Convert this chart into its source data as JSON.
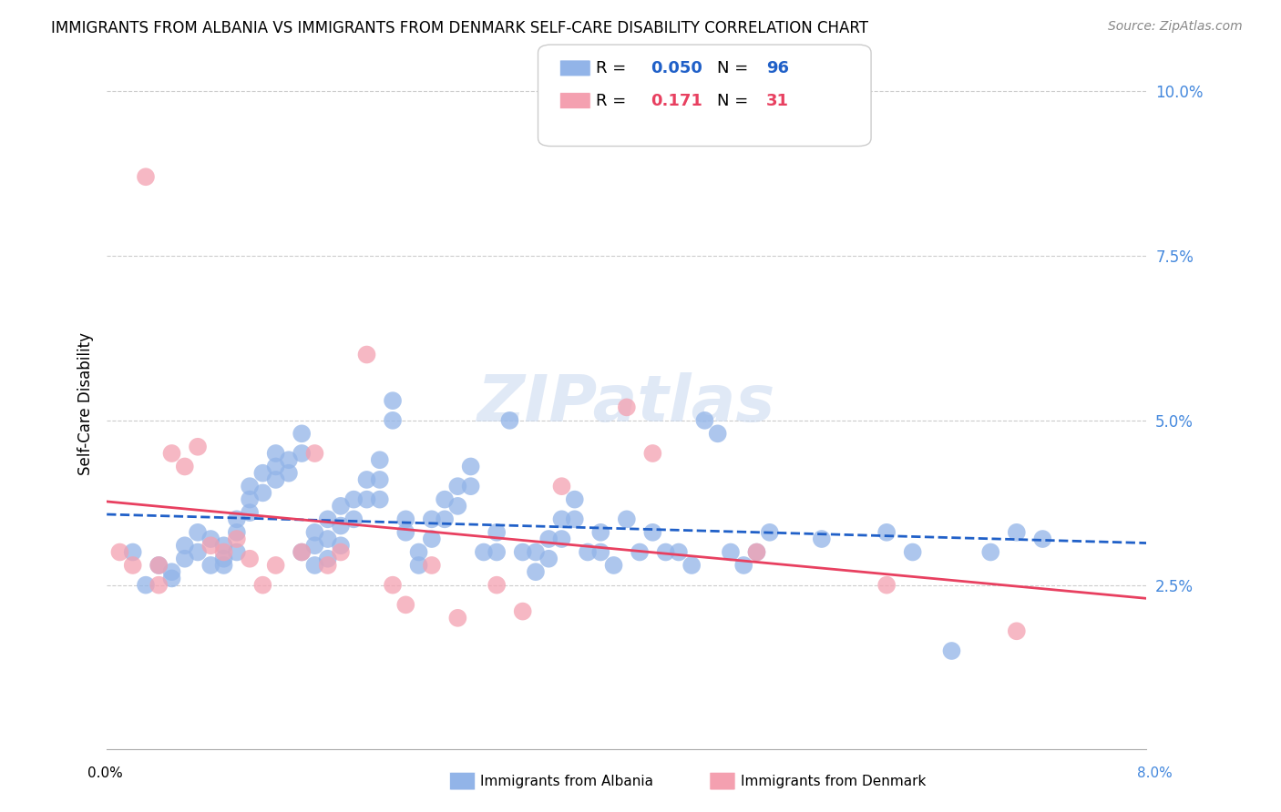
{
  "title": "IMMIGRANTS FROM ALBANIA VS IMMIGRANTS FROM DENMARK SELF-CARE DISABILITY CORRELATION CHART",
  "source": "Source: ZipAtlas.com",
  "ylabel": "Self-Care Disability",
  "right_yticks": [
    "10.0%",
    "7.5%",
    "5.0%",
    "2.5%"
  ],
  "right_ytick_vals": [
    0.1,
    0.075,
    0.05,
    0.025
  ],
  "xlim": [
    0.0,
    0.08
  ],
  "ylim": [
    0.0,
    0.105
  ],
  "legend_r_albania": "0.050",
  "legend_n_albania": "96",
  "legend_r_denmark": "0.171",
  "legend_n_denmark": "31",
  "albania_color": "#92b4e8",
  "denmark_color": "#f4a0b0",
  "trendline_albania_color": "#2060c8",
  "trendline_denmark_color": "#e84060",
  "albania_x": [
    0.002,
    0.003,
    0.004,
    0.005,
    0.005,
    0.006,
    0.006,
    0.007,
    0.007,
    0.008,
    0.008,
    0.009,
    0.009,
    0.009,
    0.01,
    0.01,
    0.01,
    0.011,
    0.011,
    0.011,
    0.012,
    0.012,
    0.013,
    0.013,
    0.013,
    0.014,
    0.014,
    0.015,
    0.015,
    0.015,
    0.016,
    0.016,
    0.016,
    0.017,
    0.017,
    0.017,
    0.018,
    0.018,
    0.018,
    0.019,
    0.019,
    0.02,
    0.02,
    0.021,
    0.021,
    0.021,
    0.022,
    0.022,
    0.023,
    0.023,
    0.024,
    0.024,
    0.025,
    0.025,
    0.026,
    0.026,
    0.027,
    0.027,
    0.028,
    0.028,
    0.029,
    0.03,
    0.03,
    0.031,
    0.032,
    0.033,
    0.033,
    0.034,
    0.034,
    0.035,
    0.035,
    0.036,
    0.036,
    0.037,
    0.038,
    0.038,
    0.039,
    0.04,
    0.041,
    0.042,
    0.043,
    0.044,
    0.045,
    0.046,
    0.047,
    0.048,
    0.049,
    0.05,
    0.051,
    0.055,
    0.06,
    0.062,
    0.065,
    0.068,
    0.07,
    0.072
  ],
  "albania_y": [
    0.03,
    0.025,
    0.028,
    0.027,
    0.026,
    0.031,
    0.029,
    0.033,
    0.03,
    0.032,
    0.028,
    0.031,
    0.029,
    0.028,
    0.035,
    0.033,
    0.03,
    0.04,
    0.038,
    0.036,
    0.042,
    0.039,
    0.045,
    0.043,
    0.041,
    0.044,
    0.042,
    0.048,
    0.045,
    0.03,
    0.033,
    0.031,
    0.028,
    0.035,
    0.032,
    0.029,
    0.037,
    0.034,
    0.031,
    0.038,
    0.035,
    0.041,
    0.038,
    0.044,
    0.041,
    0.038,
    0.053,
    0.05,
    0.035,
    0.033,
    0.03,
    0.028,
    0.035,
    0.032,
    0.038,
    0.035,
    0.04,
    0.037,
    0.043,
    0.04,
    0.03,
    0.033,
    0.03,
    0.05,
    0.03,
    0.03,
    0.027,
    0.032,
    0.029,
    0.035,
    0.032,
    0.038,
    0.035,
    0.03,
    0.033,
    0.03,
    0.028,
    0.035,
    0.03,
    0.033,
    0.03,
    0.03,
    0.028,
    0.05,
    0.048,
    0.03,
    0.028,
    0.03,
    0.033,
    0.032,
    0.033,
    0.03,
    0.015,
    0.03,
    0.033,
    0.032
  ],
  "denmark_x": [
    0.001,
    0.002,
    0.003,
    0.004,
    0.004,
    0.005,
    0.006,
    0.007,
    0.008,
    0.009,
    0.01,
    0.011,
    0.012,
    0.013,
    0.015,
    0.016,
    0.017,
    0.018,
    0.02,
    0.022,
    0.023,
    0.025,
    0.027,
    0.03,
    0.032,
    0.035,
    0.04,
    0.042,
    0.05,
    0.06,
    0.07
  ],
  "denmark_y": [
    0.03,
    0.028,
    0.087,
    0.025,
    0.028,
    0.045,
    0.043,
    0.046,
    0.031,
    0.03,
    0.032,
    0.029,
    0.025,
    0.028,
    0.03,
    0.045,
    0.028,
    0.03,
    0.06,
    0.025,
    0.022,
    0.028,
    0.02,
    0.025,
    0.021,
    0.04,
    0.052,
    0.045,
    0.03,
    0.025,
    0.018
  ]
}
